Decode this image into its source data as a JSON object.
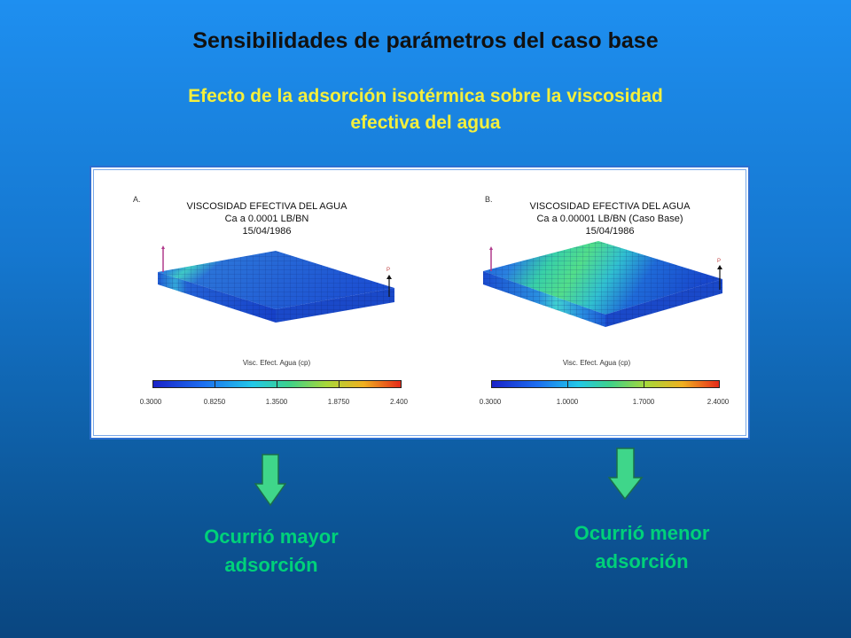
{
  "slide": {
    "title": "Sensibilidades de parámetros del caso base",
    "subtitle_line1": "Efecto de la adsorción isotérmica sobre la viscosidad",
    "subtitle_line2": "efectiva del agua"
  },
  "panels": [
    {
      "letter": "A.",
      "title_line1": "VISCOSIDAD EFECTIVA DEL AGUA",
      "title_line2": "Ca a 0.0001 LB/BN",
      "title_line3": "15/04/1986",
      "well_label": "P",
      "legend_title": "Visc. Efect. Agua (cp)",
      "ticks": [
        "0.3000",
        "0.8250",
        "1.3500",
        "1.8750",
        "2.400"
      ]
    },
    {
      "letter": "B.",
      "title_line1": "VISCOSIDAD EFECTIVA DEL AGUA",
      "title_line2": "Ca  a  0.00001 LB/BN (Caso Base)",
      "title_line3": "15/04/1986",
      "well_label": "P",
      "legend_title": "Visc. Efect. Agua (cp)",
      "ticks": [
        "0.3000",
        "1.0000",
        "1.7000",
        "2.4000"
      ]
    }
  ],
  "captions": {
    "left_line1": "Ocurrió mayor",
    "left_line2": "adsorción",
    "right_line1": "Ocurrió menor",
    "right_line2": "adsorción"
  },
  "colors": {
    "title": "#111111",
    "subtitle": "#f4ef3c",
    "caption": "#00d17a",
    "arrow_fill": "#3fd68a",
    "arrow_stroke": "#1a6e4a",
    "background_top": "#1e8ff0",
    "background_bottom": "#0a4680"
  },
  "icons": [
    "down-arrow-icon",
    "injector-well-icon",
    "producer-well-icon"
  ]
}
